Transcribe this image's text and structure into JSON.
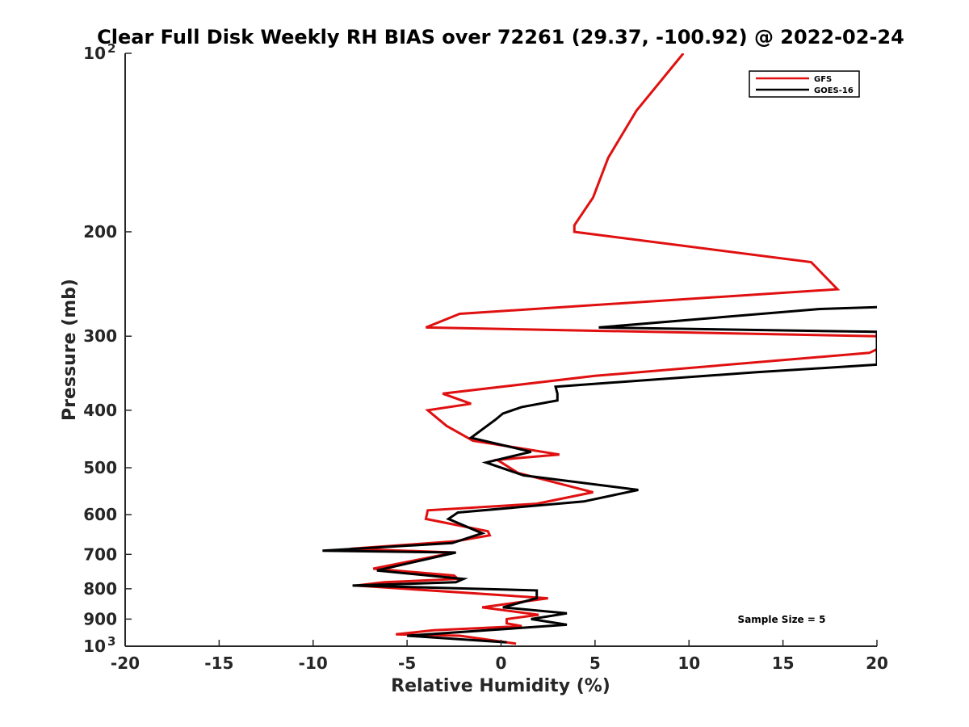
{
  "chart_data": {
    "type": "line",
    "title": "Clear Full Disk Weekly RH BIAS over 72261 (29.37, -100.92) @ 2022-02-24",
    "xlabel": "Relative Humidity (%)",
    "ylabel": "Pressure (mb)",
    "xlim": [
      -20,
      20
    ],
    "ylim": [
      100,
      1000
    ],
    "y_scale": "log",
    "y_reversed": true,
    "grid": false,
    "legend_position": "top-right",
    "x_ticks": [
      "-20",
      "-15",
      "-10",
      "-5",
      "0",
      "5",
      "10",
      "15",
      "20"
    ],
    "y_ticks": [
      {
        "value": 100,
        "base": "10",
        "exp": "2"
      },
      {
        "value": 200,
        "base": "200",
        "exp": ""
      },
      {
        "value": 300,
        "base": "300",
        "exp": ""
      },
      {
        "value": 400,
        "base": "400",
        "exp": ""
      },
      {
        "value": 500,
        "base": "500",
        "exp": ""
      },
      {
        "value": 600,
        "base": "600",
        "exp": ""
      },
      {
        "value": 700,
        "base": "700",
        "exp": ""
      },
      {
        "value": 800,
        "base": "800",
        "exp": ""
      },
      {
        "value": 900,
        "base": "900",
        "exp": ""
      },
      {
        "value": 1000,
        "base": "10",
        "exp": "3"
      }
    ],
    "annotation": "Sample Size = 5",
    "series": [
      {
        "name": "GFS",
        "color": "#e01010",
        "points": [
          [
            9.7,
            100
          ],
          [
            7.2,
            125
          ],
          [
            5.7,
            150
          ],
          [
            4.9,
            175
          ],
          [
            3.9,
            195
          ],
          [
            3.9,
            200
          ],
          [
            16.5,
            225
          ],
          [
            17.9,
            250
          ],
          [
            -2.2,
            275
          ],
          [
            -4.0,
            290
          ],
          [
            20.0,
            300
          ],
          [
            20.5,
            310
          ],
          [
            19.6,
            320
          ],
          [
            5.0,
            350
          ],
          [
            -3.1,
            375
          ],
          [
            -1.6,
            390
          ],
          [
            -3.9,
            400
          ],
          [
            -2.9,
            425
          ],
          [
            -1.5,
            450
          ],
          [
            3.1,
            475
          ],
          [
            -0.2,
            485
          ],
          [
            0.9,
            510
          ],
          [
            4.9,
            550
          ],
          [
            1.9,
            575
          ],
          [
            -3.9,
            590
          ],
          [
            -4.0,
            610
          ],
          [
            -0.7,
            640
          ],
          [
            -0.6,
            650
          ],
          [
            -2.4,
            665
          ],
          [
            -8.0,
            685
          ],
          [
            -2.5,
            695
          ],
          [
            -6.8,
            740
          ],
          [
            -2.5,
            760
          ],
          [
            -2.3,
            770
          ],
          [
            -6.2,
            780
          ],
          [
            -7.7,
            790
          ],
          [
            2.5,
            830
          ],
          [
            -1.0,
            860
          ],
          [
            2.0,
            885
          ],
          [
            0.3,
            900
          ],
          [
            0.3,
            915
          ],
          [
            1.1,
            925
          ],
          [
            -3.6,
            940
          ],
          [
            -5.6,
            955
          ],
          [
            -2.2,
            960
          ],
          [
            0.8,
            990
          ]
        ]
      },
      {
        "name": "GOES-16",
        "color": "#000000",
        "points": [
          [
            20.0,
            268
          ],
          [
            16.9,
            270
          ],
          [
            5.2,
            290
          ],
          [
            20.0,
            295
          ],
          [
            20.0,
            300
          ],
          [
            20.0,
            335
          ],
          [
            13.6,
            345
          ],
          [
            2.9,
            365
          ],
          [
            3.0,
            375
          ],
          [
            3.0,
            385
          ],
          [
            1.1,
            395
          ],
          [
            0.1,
            405
          ],
          [
            -0.3,
            415
          ],
          [
            -1.6,
            445
          ],
          [
            1.6,
            470
          ],
          [
            -0.8,
            490
          ],
          [
            1.2,
            515
          ],
          [
            7.3,
            545
          ],
          [
            4.4,
            570
          ],
          [
            -2.3,
            595
          ],
          [
            -2.8,
            610
          ],
          [
            -1.0,
            645
          ],
          [
            -2.6,
            670
          ],
          [
            -9.5,
            690
          ],
          [
            -2.4,
            695
          ],
          [
            -6.6,
            745
          ],
          [
            -2.0,
            770
          ],
          [
            -2.4,
            780
          ],
          [
            -7.9,
            790
          ],
          [
            1.9,
            805
          ],
          [
            1.9,
            830
          ],
          [
            0.1,
            860
          ],
          [
            3.5,
            880
          ],
          [
            1.6,
            900
          ],
          [
            3.5,
            920
          ],
          [
            -5.0,
            960
          ],
          [
            0.3,
            985
          ]
        ]
      }
    ]
  }
}
